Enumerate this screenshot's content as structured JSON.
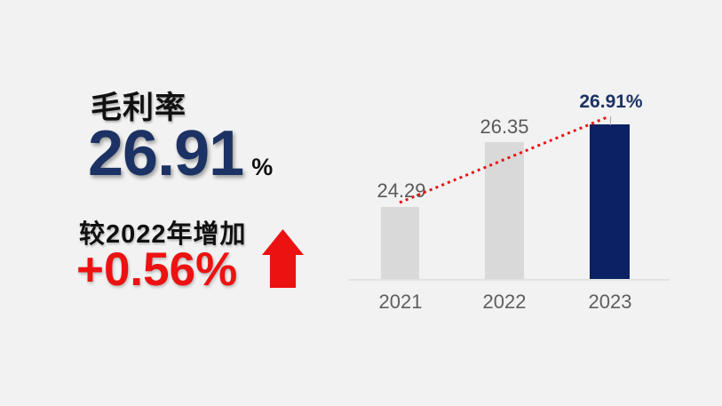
{
  "panel": {
    "title": "毛利率",
    "main_value": "26.91",
    "main_unit": "%",
    "delta_label": "较2022年增加",
    "delta_value": "+0.56%"
  },
  "chart_data": {
    "type": "bar",
    "title": "毛利率 (%)",
    "categories": [
      "2021",
      "2022",
      "2023"
    ],
    "values": [
      24.29,
      26.35,
      26.91
    ],
    "value_labels": [
      "24.29",
      "26.35",
      "26.91%"
    ],
    "highlight_index": 2,
    "ylim": [
      22,
      28
    ],
    "grid": false,
    "legend": false,
    "trend_line": {
      "type": "dotted",
      "from_category": "2021",
      "to_category": "2023"
    }
  },
  "colors": {
    "background": "#f2f2f2",
    "navy_text": "#1c3264",
    "navy_bar": "#0b2164",
    "gray_bar": "#d9d9d9",
    "gray_text": "#595959",
    "red": "#ec1212",
    "axis": "#e2e2e2"
  }
}
